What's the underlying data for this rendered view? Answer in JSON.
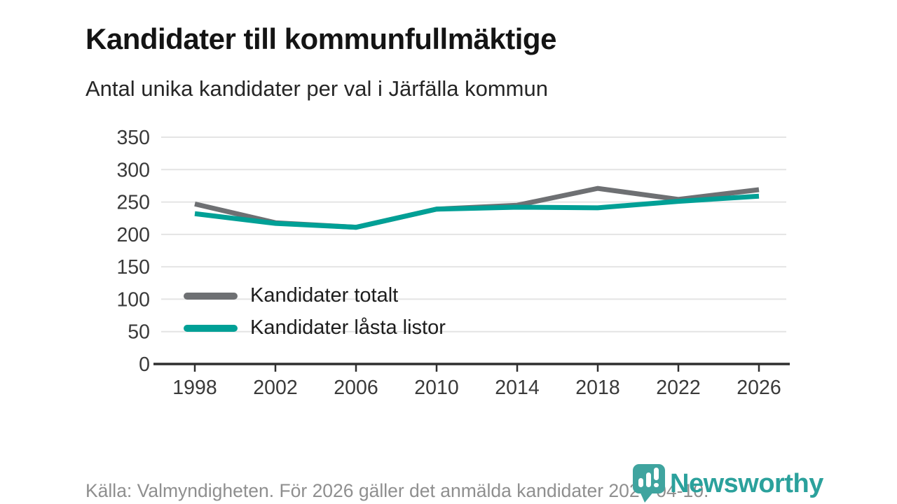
{
  "header": {
    "title": "Kandidater till kommunfullmäktige",
    "subtitle": "Antal unika kandidater per val i Järfälla kommun"
  },
  "chart_data": {
    "type": "line",
    "x": [
      1998,
      2002,
      2006,
      2010,
      2014,
      2018,
      2022,
      2026
    ],
    "series": [
      {
        "name": "Kandidater totalt",
        "color": "#6e7073",
        "values": [
          247,
          218,
          211,
          239,
          245,
          271,
          254,
          269
        ]
      },
      {
        "name": "Kandidater låsta listor",
        "color": "#00a096",
        "values": [
          232,
          217,
          211,
          239,
          242,
          241,
          251,
          259
        ]
      }
    ],
    "ylim": [
      0,
      350
    ],
    "yticks": [
      0,
      50,
      100,
      150,
      200,
      250,
      300,
      350
    ],
    "grid": "horizontal",
    "grid_color": "#e4e4e4",
    "axis_color": "#2f2f2f",
    "legend_position": "inside-left",
    "xlabel": "",
    "ylabel": ""
  },
  "footer": {
    "source": "Källa: Valmyndigheten. För 2026 gäller det anmälda kandidater 2026-04-10."
  },
  "branding": {
    "logo_text": "Newsworthy",
    "logo_color": "#2ba19c",
    "logo_mark_color": "#3fa49f"
  }
}
